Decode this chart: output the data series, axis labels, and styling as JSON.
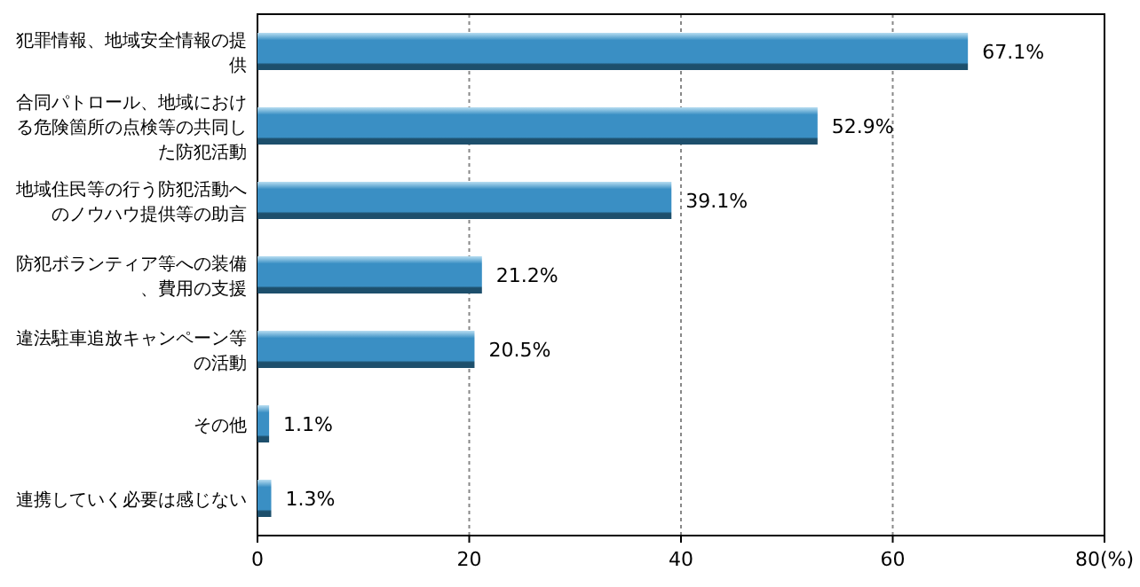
{
  "chart_data": {
    "type": "bar",
    "orientation": "horizontal",
    "categories": [
      "犯罪情報、地域安全情報の提供",
      "合同パトロール、地域における危険箇所の点検等の共同した防犯活動",
      "地域住民等の行う防犯活動へのノウハウ提供等の助言",
      "防犯ボランティア等への装備、費用の支援",
      "違法駐車追放キャンペーン等の活動",
      "その他",
      "連携していく必要は感じない"
    ],
    "values": [
      67.1,
      52.9,
      39.1,
      21.2,
      20.5,
      1.1,
      1.3
    ],
    "value_labels": [
      "67.1%",
      "52.9%",
      "39.1%",
      "21.2%",
      "20.5%",
      "1.1%",
      "1.3%"
    ],
    "color": "#3a8fc4",
    "xlim": [
      0,
      80
    ],
    "xticks": [
      0,
      20,
      40,
      60,
      {
        "value": 80,
        "label": "80(%)"
      }
    ],
    "grid": "x"
  }
}
